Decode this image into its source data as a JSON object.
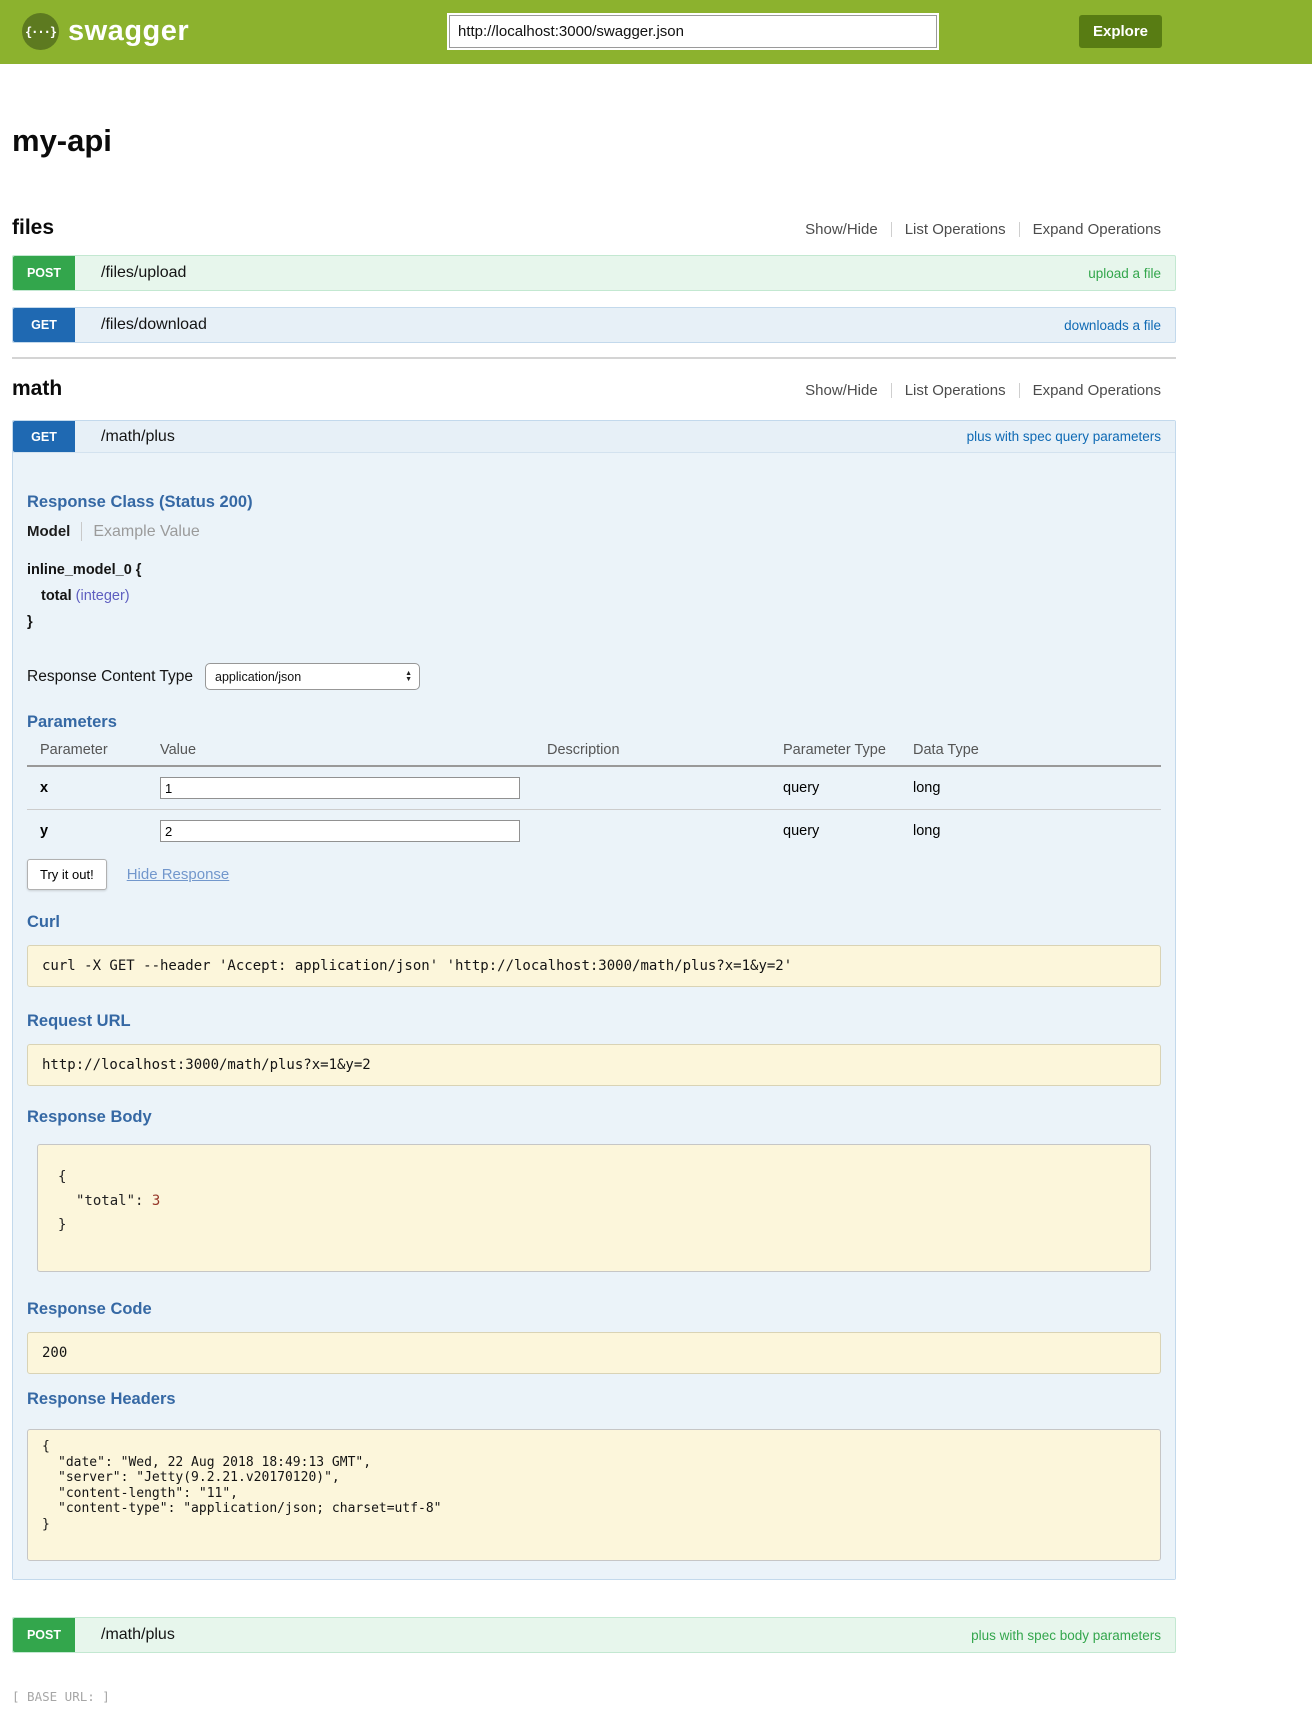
{
  "colors": {
    "header_green": "#8cb22e",
    "explore_button_green": "#587c13",
    "post_green": "#33a64c",
    "get_blue": "#1f69b2",
    "link_blue": "#0f6ab4",
    "heading_blue": "#3568a4",
    "get_row_bg": "#e7f0f7",
    "get_content_bg": "#ebf3f9",
    "post_row_bg": "#e7f6ec",
    "code_box_bg": "#fcf6db",
    "property_type_purple": "#5e5ec0",
    "json_number_red": "#963728"
  },
  "icons": {
    "logo_glyph": "{···}",
    "select_arrow_up": "▲",
    "select_arrow_down": "▼"
  },
  "header": {
    "brand": "swagger",
    "url_value": "http://localhost:3000/swagger.json",
    "explore_label": "Explore"
  },
  "api_title": "my-api",
  "section_controls": {
    "show_hide": "Show/Hide",
    "list_operations": "List Operations",
    "expand_operations": "Expand Operations"
  },
  "files_section": {
    "title": "files",
    "operations": [
      {
        "method": "POST",
        "path": "/files/upload",
        "summary": "upload a file"
      },
      {
        "method": "GET",
        "path": "/files/download",
        "summary": "downloads a file"
      }
    ]
  },
  "math_section": {
    "title": "math",
    "get_operation": {
      "method": "GET",
      "path": "/math/plus",
      "summary": "plus with spec query parameters",
      "response_class": {
        "heading": "Response Class (Status 200)",
        "tab_model": "Model",
        "tab_example": "Example Value",
        "model_open": "inline_model_0 {",
        "prop_name": "total",
        "prop_type": "(integer)",
        "model_close": "}"
      },
      "response_content_type": {
        "label": "Response Content Type",
        "selected": "application/json"
      },
      "parameters": {
        "heading": "Parameters",
        "columns": [
          "Parameter",
          "Value",
          "Description",
          "Parameter Type",
          "Data Type"
        ],
        "rows": [
          {
            "name": "x",
            "value": "1",
            "description": "",
            "param_type": "query",
            "data_type": "long"
          },
          {
            "name": "y",
            "value": "2",
            "description": "",
            "param_type": "query",
            "data_type": "long"
          }
        ]
      },
      "try_it_out_label": "Try it out!",
      "hide_response_label": "Hide Response",
      "curl": {
        "heading": "Curl",
        "command": "curl -X GET --header 'Accept: application/json' 'http://localhost:3000/math/plus?x=1&y=2'"
      },
      "request_url": {
        "heading": "Request URL",
        "value": "http://localhost:3000/math/plus?x=1&y=2"
      },
      "response_body": {
        "heading": "Response Body",
        "open_brace": "{",
        "key": "\"total\"",
        "colon": ": ",
        "value": "3",
        "close_brace": "}"
      },
      "response_code": {
        "heading": "Response Code",
        "value": "200"
      },
      "response_headers": {
        "heading": "Response Headers",
        "lines": [
          "{",
          "\"date\": \"Wed, 22 Aug 2018 18:49:13 GMT\",",
          "\"server\": \"Jetty(9.2.21.v20170120)\",",
          "\"content-length\": \"11\",",
          "\"content-type\": \"application/json; charset=utf-8\"",
          "}"
        ]
      }
    },
    "post_operation": {
      "method": "POST",
      "path": "/math/plus",
      "summary": "plus with spec body parameters"
    }
  },
  "footer": {
    "base_url_label": "[ BASE URL: ]"
  }
}
